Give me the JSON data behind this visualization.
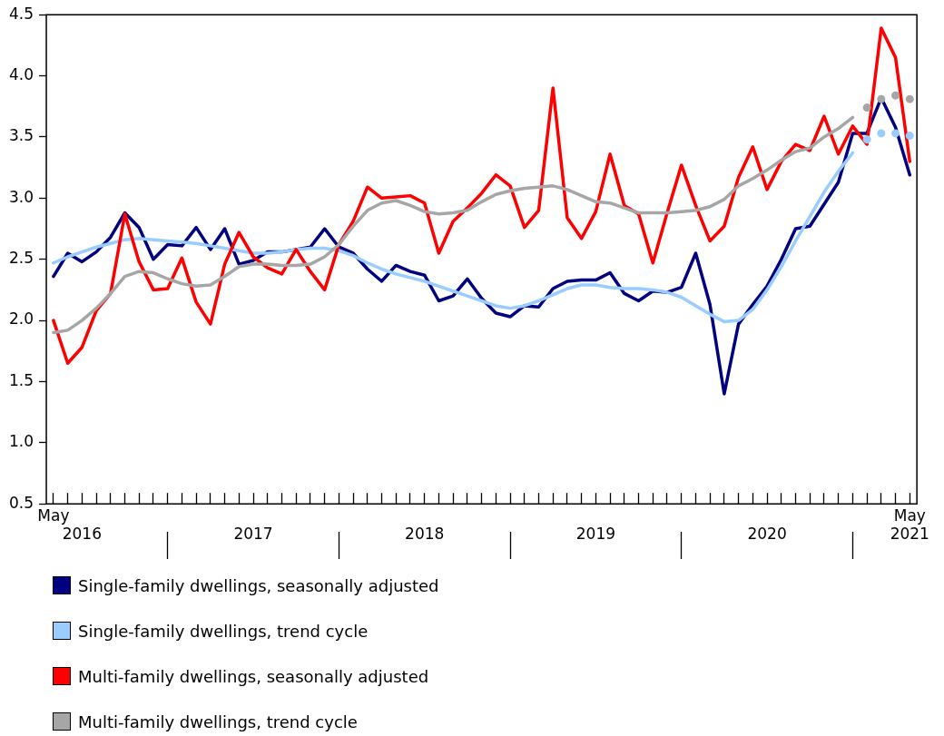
{
  "chart_data": {
    "type": "line",
    "categories": [
      "May",
      null,
      "2016",
      null,
      null,
      null,
      null,
      null,
      null,
      null,
      null,
      null,
      null,
      null,
      "2017",
      null,
      null,
      null,
      null,
      null,
      null,
      null,
      null,
      null,
      null,
      null,
      "2018",
      null,
      null,
      null,
      null,
      null,
      null,
      null,
      null,
      null,
      null,
      null,
      "2019",
      null,
      null,
      null,
      null,
      null,
      null,
      null,
      null,
      null,
      null,
      null,
      "2020",
      null,
      null,
      null,
      null,
      null,
      null,
      null,
      null,
      null,
      "May 2021"
    ],
    "series": [
      {
        "name": "Single-family dwellings, seasonally adjusted",
        "color": "#000080",
        "values": [
          2.36,
          2.55,
          2.48,
          2.56,
          2.68,
          2.88,
          2.76,
          2.5,
          2.62,
          2.61,
          2.76,
          2.58,
          2.75,
          2.46,
          2.49,
          2.56,
          2.56,
          2.58,
          2.6,
          2.75,
          2.6,
          2.55,
          2.42,
          2.32,
          2.45,
          2.4,
          2.37,
          2.16,
          2.2,
          2.34,
          2.18,
          2.06,
          2.03,
          2.12,
          2.11,
          2.26,
          2.32,
          2.33,
          2.33,
          2.39,
          2.22,
          2.16,
          2.24,
          2.23,
          2.27,
          2.55,
          2.13,
          1.4,
          1.97,
          2.13,
          2.28,
          2.5,
          2.75,
          2.77,
          2.95,
          3.13,
          3.53,
          3.53,
          3.82,
          3.58,
          3.19
        ]
      },
      {
        "name": "Single-family dwellings, trend cycle",
        "color": "#99ccff",
        "values": [
          2.47,
          2.52,
          2.56,
          2.6,
          2.63,
          2.66,
          2.67,
          2.66,
          2.65,
          2.64,
          2.63,
          2.61,
          2.59,
          2.57,
          2.55,
          2.55,
          2.56,
          2.58,
          2.59,
          2.59,
          2.57,
          2.53,
          2.47,
          2.42,
          2.38,
          2.35,
          2.32,
          2.28,
          2.24,
          2.2,
          2.16,
          2.12,
          2.1,
          2.12,
          2.16,
          2.21,
          2.26,
          2.29,
          2.29,
          2.27,
          2.26,
          2.26,
          2.25,
          2.23,
          2.19,
          2.12,
          2.05,
          1.99,
          2.0,
          2.09,
          2.25,
          2.44,
          2.65,
          2.85,
          3.05,
          3.22,
          3.37,
          null,
          null,
          null,
          null
        ]
      },
      {
        "name": "Multi-family dwellings, seasonally adjusted",
        "color": "#ff0000",
        "values": [
          2.0,
          1.65,
          1.78,
          2.08,
          2.22,
          2.87,
          2.48,
          2.25,
          2.26,
          2.51,
          2.15,
          1.97,
          2.46,
          2.72,
          2.52,
          2.43,
          2.38,
          2.58,
          2.4,
          2.25,
          2.62,
          2.81,
          3.09,
          3.0,
          3.01,
          3.02,
          2.96,
          2.55,
          2.81,
          2.92,
          3.04,
          3.19,
          3.1,
          2.76,
          2.9,
          3.9,
          2.84,
          2.67,
          2.89,
          3.36,
          2.94,
          2.87,
          2.47,
          2.88,
          3.27,
          2.94,
          2.65,
          2.77,
          3.17,
          3.42,
          3.07,
          3.3,
          3.44,
          3.39,
          3.67,
          3.36,
          3.59,
          3.44,
          4.39,
          4.15,
          3.3
        ]
      },
      {
        "name": "Multi-family dwellings, trend cycle",
        "color": "#a6a6a6",
        "values": [
          1.9,
          1.92,
          2.0,
          2.1,
          2.22,
          2.36,
          2.4,
          2.39,
          2.34,
          2.3,
          2.28,
          2.29,
          2.36,
          2.44,
          2.46,
          2.46,
          2.45,
          2.45,
          2.46,
          2.52,
          2.62,
          2.77,
          2.9,
          2.96,
          2.98,
          2.94,
          2.89,
          2.87,
          2.88,
          2.9,
          2.97,
          3.03,
          3.06,
          3.08,
          3.09,
          3.1,
          3.07,
          3.02,
          2.97,
          2.96,
          2.92,
          2.88,
          2.88,
          2.88,
          2.89,
          2.9,
          2.93,
          2.99,
          3.1,
          3.16,
          3.23,
          3.31,
          3.38,
          3.41,
          3.5,
          3.57,
          3.66,
          null,
          null,
          null,
          null
        ]
      },
      {
        "type": "scatter",
        "color": "#99ccff",
        "marker": "circle",
        "values": [
          null,
          null,
          null,
          null,
          null,
          null,
          null,
          null,
          null,
          null,
          null,
          null,
          null,
          null,
          null,
          null,
          null,
          null,
          null,
          null,
          null,
          null,
          null,
          null,
          null,
          null,
          null,
          null,
          null,
          null,
          null,
          null,
          null,
          null,
          null,
          null,
          null,
          null,
          null,
          null,
          null,
          null,
          null,
          null,
          null,
          null,
          null,
          null,
          null,
          null,
          null,
          null,
          null,
          null,
          null,
          null,
          null,
          3.48,
          3.53,
          3.53,
          3.51
        ]
      },
      {
        "type": "scatter",
        "color": "#a6a6a6",
        "marker": "circle",
        "values": [
          null,
          null,
          null,
          null,
          null,
          null,
          null,
          null,
          null,
          null,
          null,
          null,
          null,
          null,
          null,
          null,
          null,
          null,
          null,
          null,
          null,
          null,
          null,
          null,
          null,
          null,
          null,
          null,
          null,
          null,
          null,
          null,
          null,
          null,
          null,
          null,
          null,
          null,
          null,
          null,
          null,
          null,
          null,
          null,
          null,
          null,
          null,
          null,
          null,
          null,
          null,
          null,
          null,
          null,
          null,
          null,
          null,
          3.74,
          3.81,
          3.84,
          3.81
        ]
      }
    ],
    "ylim": [
      0.5,
      4.5
    ],
    "yticks": [
      0.5,
      {
        "value": 1,
        "label": "1.0"
      },
      1.5,
      {
        "value": 2,
        "label": "2.0"
      },
      2.5,
      {
        "value": 3,
        "label": "3.0"
      },
      3.5,
      {
        "value": 4,
        "label": "4.0"
      },
      4.5
    ],
    "grid": false,
    "legend": "bottom",
    "marker": "none",
    "line_style": "solid"
  }
}
